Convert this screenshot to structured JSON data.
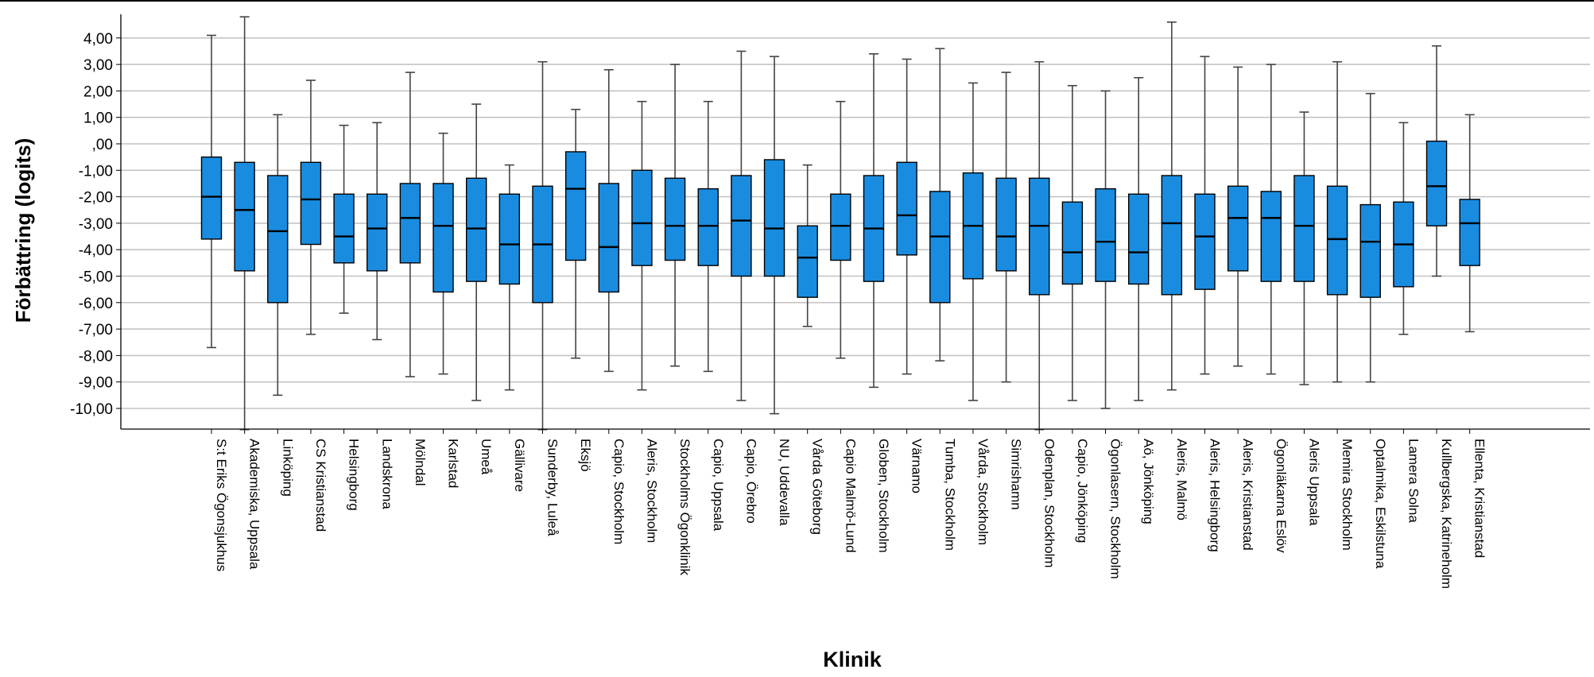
{
  "chart_data": {
    "type": "boxplot",
    "title": "",
    "xlabel": "Klinik",
    "ylabel": "Förbättring (logits)",
    "ylim": [
      -10.9,
      4.9
    ],
    "y_ticks": [
      "4,00",
      "3,00",
      "2,00",
      "1,00",
      ",00",
      "-1,00",
      "-2,00",
      "-3,00",
      "-4,00",
      "-5,00",
      "-6,00",
      "-7,00",
      "-8,00",
      "-9,00",
      "-10,00"
    ],
    "y_tick_values": [
      4,
      3,
      2,
      1,
      0,
      -1,
      -2,
      -3,
      -4,
      -5,
      -6,
      -7,
      -8,
      -9,
      -10
    ],
    "grid": true,
    "box_color": "#1a8ce0",
    "categories": [
      "S:t Eriks Ögonsjukhus",
      "Akademiska, Uppsala",
      "Linköping",
      "CS Kristianstad",
      "Helsingborg",
      "Landskrona",
      "Mölndal",
      "Karlstad",
      "Umeå",
      "Gällivare",
      "Sunderby, Luleå",
      "Eksjö",
      "Capio, Stockholm",
      "Aleris, Stockholm",
      "Stockholms Ögonklinik",
      "Capio, Uppsala",
      "Capio, Örebro",
      "NU, Uddevalla",
      "Vårda Göteborg",
      "Capio Malmö-Lund",
      "Globen, Stockholm",
      "Värnamo",
      "Tumba, Stockholm",
      "Vårda, Stockholm",
      "Simrishamn",
      "Odenplan, Stockholm",
      "Capio, Jönköping",
      "Ögonlasern, Stockholm",
      "Aö, Jönköping",
      "Aleris, Malmö",
      "Aleris, Helsingborg",
      "Aleris, Kristianstad",
      "Ögonläkarna Eslöv",
      "Aleris Uppsala",
      "Memira Stockholm",
      "Optalmika, Eskilstuna",
      "Lamera Solna",
      "Kullbergska, Katrineholm",
      "Ellenta, Kristianstad"
    ],
    "series": [
      {
        "min": -7.7,
        "q1": -3.6,
        "median": -2.0,
        "q3": -0.5,
        "max": 4.1
      },
      {
        "min": -10.8,
        "q1": -4.8,
        "median": -2.5,
        "q3": -0.7,
        "max": 4.8
      },
      {
        "min": -9.5,
        "q1": -6.0,
        "median": -3.3,
        "q3": -1.2,
        "max": 1.1
      },
      {
        "min": -7.2,
        "q1": -3.8,
        "median": -2.1,
        "q3": -0.7,
        "max": 2.4
      },
      {
        "min": -6.4,
        "q1": -4.5,
        "median": -3.5,
        "q3": -1.9,
        "max": 0.7
      },
      {
        "min": -7.4,
        "q1": -4.8,
        "median": -3.2,
        "q3": -1.9,
        "max": 0.8
      },
      {
        "min": -8.8,
        "q1": -4.5,
        "median": -2.8,
        "q3": -1.5,
        "max": 2.7
      },
      {
        "min": -8.7,
        "q1": -5.6,
        "median": -3.1,
        "q3": -1.5,
        "max": 0.4
      },
      {
        "min": -9.7,
        "q1": -5.2,
        "median": -3.2,
        "q3": -1.3,
        "max": 1.5
      },
      {
        "min": -9.3,
        "q1": -5.3,
        "median": -3.8,
        "q3": -1.9,
        "max": -0.8
      },
      {
        "min": -10.8,
        "q1": -6.0,
        "median": -3.8,
        "q3": -1.6,
        "max": 3.1
      },
      {
        "min": -8.1,
        "q1": -4.4,
        "median": -1.7,
        "q3": -0.3,
        "max": 1.3
      },
      {
        "min": -8.6,
        "q1": -5.6,
        "median": -3.9,
        "q3": -1.5,
        "max": 2.8
      },
      {
        "min": -9.3,
        "q1": -4.6,
        "median": -3.0,
        "q3": -1.0,
        "max": 1.6
      },
      {
        "min": -8.4,
        "q1": -4.4,
        "median": -3.1,
        "q3": -1.3,
        "max": 3.0
      },
      {
        "min": -8.6,
        "q1": -4.6,
        "median": -3.1,
        "q3": -1.7,
        "max": 1.6
      },
      {
        "min": -9.7,
        "q1": -5.0,
        "median": -2.9,
        "q3": -1.2,
        "max": 3.5
      },
      {
        "min": -10.2,
        "q1": -5.0,
        "median": -3.2,
        "q3": -0.6,
        "max": 3.3
      },
      {
        "min": -6.9,
        "q1": -5.8,
        "median": -4.3,
        "q3": -3.1,
        "max": -0.8
      },
      {
        "min": -8.1,
        "q1": -4.4,
        "median": -3.1,
        "q3": -1.9,
        "max": 1.6
      },
      {
        "min": -9.2,
        "q1": -5.2,
        "median": -3.2,
        "q3": -1.2,
        "max": 3.4
      },
      {
        "min": -8.7,
        "q1": -4.2,
        "median": -2.7,
        "q3": -0.7,
        "max": 3.2
      },
      {
        "min": -8.2,
        "q1": -6.0,
        "median": -3.5,
        "q3": -1.8,
        "max": 3.6
      },
      {
        "min": -9.7,
        "q1": -5.1,
        "median": -3.1,
        "q3": -1.1,
        "max": 2.3
      },
      {
        "min": -9.0,
        "q1": -4.8,
        "median": -3.5,
        "q3": -1.3,
        "max": 2.7
      },
      {
        "min": -10.8,
        "q1": -5.7,
        "median": -3.1,
        "q3": -1.3,
        "max": 3.1
      },
      {
        "min": -9.7,
        "q1": -5.3,
        "median": -4.1,
        "q3": -2.2,
        "max": 2.2
      },
      {
        "min": -10.0,
        "q1": -5.2,
        "median": -3.7,
        "q3": -1.7,
        "max": 2.0
      },
      {
        "min": -9.7,
        "q1": -5.3,
        "median": -4.1,
        "q3": -1.9,
        "max": 2.5
      },
      {
        "min": -9.3,
        "q1": -5.7,
        "median": -3.0,
        "q3": -1.2,
        "max": 4.6
      },
      {
        "min": -8.7,
        "q1": -5.5,
        "median": -3.5,
        "q3": -1.9,
        "max": 3.3
      },
      {
        "min": -8.4,
        "q1": -4.8,
        "median": -2.8,
        "q3": -1.6,
        "max": 2.9
      },
      {
        "min": -8.7,
        "q1": -5.2,
        "median": -2.8,
        "q3": -1.8,
        "max": 3.0
      },
      {
        "min": -9.1,
        "q1": -5.2,
        "median": -3.1,
        "q3": -1.2,
        "max": 1.2
      },
      {
        "min": -9.0,
        "q1": -5.7,
        "median": -3.6,
        "q3": -1.6,
        "max": 3.1
      },
      {
        "min": -9.0,
        "q1": -5.8,
        "median": -3.7,
        "q3": -2.3,
        "max": 1.9
      },
      {
        "min": -7.2,
        "q1": -5.4,
        "median": -3.8,
        "q3": -2.2,
        "max": 0.8
      },
      {
        "min": -5.0,
        "q1": -3.1,
        "median": -1.6,
        "q3": 0.1,
        "max": 3.7
      },
      {
        "min": -7.1,
        "q1": -4.6,
        "median": -3.0,
        "q3": -2.1,
        "max": 1.1
      }
    ]
  }
}
